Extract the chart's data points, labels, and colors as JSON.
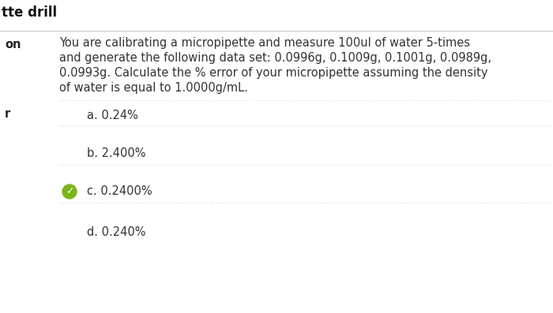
{
  "background_color": "#f5f5f5",
  "header_text": "tte drill",
  "top_label": "on",
  "answer_label": "r",
  "question_lines": [
    "You are calibrating a micropipette and measure 100ul of water 5-times",
    "and generate the following data set: 0.0996g, 0.1009g, 0.1001g, 0.0989g,",
    "0.0993g. Calculate the % error of your micropipette assuming the density",
    "of water is equal to 1.0000g/mL."
  ],
  "choices": [
    {
      "label": "a.",
      "text": "0.24%",
      "correct": false
    },
    {
      "label": "b.",
      "text": "2.400%",
      "correct": false
    },
    {
      "label": "c.",
      "text": "0.2400%",
      "correct": true
    },
    {
      "label": "d.",
      "text": "0.240%",
      "correct": false
    }
  ],
  "separator_color": "#cccccc",
  "correct_icon_color": "#7cb518",
  "text_color": "#333333",
  "bold_label_color": "#222222",
  "font_size_question": 10.5,
  "font_size_choices": 10.5,
  "font_size_header": 12,
  "font_size_label": 10.5
}
